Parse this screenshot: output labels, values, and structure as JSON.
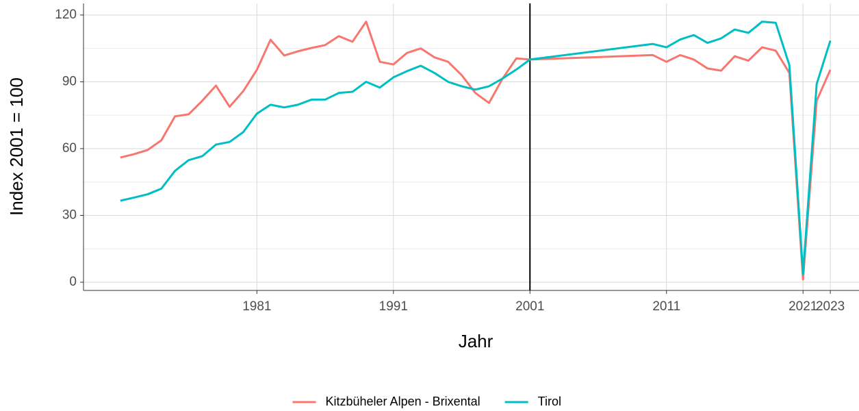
{
  "chart_data": {
    "type": "line",
    "x_label": "Jahr",
    "y_label": "Index 2001 = 100",
    "x": [
      1971,
      1972,
      1973,
      1974,
      1975,
      1976,
      1977,
      1978,
      1979,
      1980,
      1981,
      1982,
      1983,
      1984,
      1985,
      1986,
      1987,
      1988,
      1989,
      1990,
      1991,
      1992,
      1993,
      1994,
      1995,
      1996,
      1997,
      1998,
      1999,
      2000,
      2001,
      2010,
      2011,
      2012,
      2013,
      2014,
      2015,
      2016,
      2017,
      2018,
      2019,
      2020,
      2021,
      2022,
      2023
    ],
    "series": [
      {
        "name": "Kitzbüheler Alpen - Brixental",
        "color": "#F8766D",
        "values": [
          56,
          57.5,
          59.4,
          63.7,
          74.5,
          75.4,
          81.5,
          88.3,
          78.8,
          85.8,
          95.4,
          108.9,
          101.8,
          103.7,
          105.2,
          106.5,
          110.5,
          108,
          117,
          99,
          97.8,
          103,
          105,
          101,
          99,
          93,
          85,
          80.5,
          91.5,
          100.5,
          100,
          102,
          99,
          102,
          100,
          96,
          95,
          101.5,
          99.5,
          105.5,
          104,
          94,
          1.2,
          81.5,
          95.4
        ]
      },
      {
        "name": "Tirol",
        "color": "#00BFC4",
        "values": [
          36.6,
          38,
          39.5,
          42,
          50,
          54.8,
          56.6,
          61.8,
          63,
          67.4,
          75.7,
          79.7,
          78.5,
          79.7,
          82,
          82,
          85,
          85.5,
          90,
          87.4,
          92,
          94.8,
          97.2,
          94,
          90,
          88,
          86.5,
          88,
          91.5,
          95.5,
          100,
          107,
          105.5,
          109,
          111,
          107.5,
          109.5,
          113.5,
          112,
          117,
          116.5,
          97.5,
          3.7,
          89,
          108.5
        ]
      }
    ],
    "xlim": [
      1968.3,
      2025.1
    ],
    "xticks": [
      1981,
      1991,
      2001,
      2011,
      2021,
      2023
    ],
    "ylim": [
      -3.7,
      125.2
    ],
    "yticks": [
      0,
      30,
      60,
      90,
      120
    ],
    "y_minor_ticks": [
      15,
      45,
      75,
      105
    ],
    "vline": 2001,
    "grid": true,
    "legend": "bottom"
  }
}
